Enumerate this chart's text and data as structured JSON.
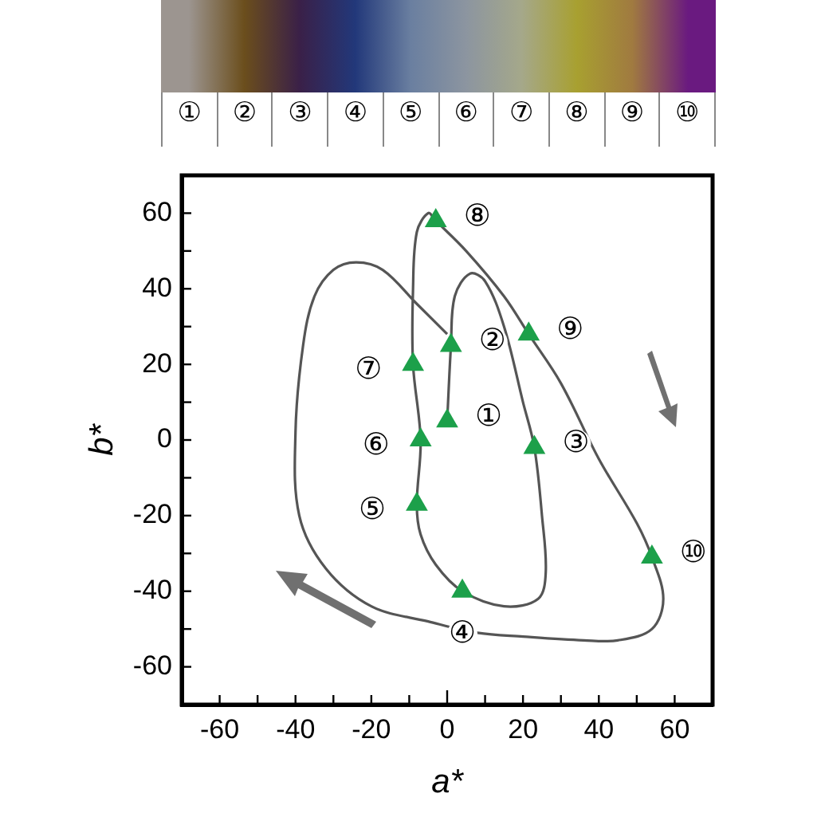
{
  "chart_data": [
    {
      "type": "scatter",
      "xlabel": "a*",
      "ylabel": "b*",
      "xlim": [
        -70,
        70
      ],
      "ylim": [
        -70,
        70
      ],
      "xticks": [
        -60,
        {
          "value": -50,
          "label": null
        },
        -40,
        {
          "value": -30,
          "label": null
        },
        -20,
        {
          "value": -10,
          "label": null
        },
        0,
        {
          "value": 10,
          "label": null
        },
        20,
        {
          "value": 30,
          "label": null
        },
        40,
        {
          "value": 50,
          "label": null
        },
        60
      ],
      "yticks": [
        -60,
        {
          "value": -50,
          "label": null
        },
        -40,
        {
          "value": -30,
          "label": null
        },
        -20,
        {
          "value": -10,
          "label": null
        },
        0,
        {
          "value": 10,
          "label": null
        },
        20,
        {
          "value": 30,
          "label": null
        },
        40,
        {
          "value": 50,
          "label": null
        },
        60
      ],
      "grid": false,
      "series": [
        {
          "type": "line",
          "color": "#555555",
          "marker": "none",
          "x": [
            0,
            1,
            2,
            6,
            10,
            15,
            20,
            23,
            25,
            26,
            24,
            15,
            4,
            -3,
            -7,
            -8,
            -7,
            -9,
            -9,
            -8,
            -5,
            -3,
            5,
            15,
            21.5,
            30,
            40,
            50,
            54,
            57,
            54,
            45,
            36,
            20,
            8,
            -5,
            -20,
            -32,
            -39,
            -40,
            -38,
            -35,
            -30,
            -24,
            -17,
            -8,
            0
          ],
          "values": [
            5,
            25,
            38,
            44,
            42,
            30,
            10,
            -2,
            -20,
            -35,
            -42,
            -44,
            -40,
            -33,
            -25,
            -17,
            0,
            20,
            40,
            55,
            60,
            58,
            50,
            38,
            28,
            15,
            -5,
            -22,
            -31,
            -42,
            -50,
            -53,
            -53,
            -52,
            -51,
            -48,
            -44,
            -34,
            -20,
            2,
            25,
            38,
            45,
            47,
            45,
            36,
            28
          ]
        },
        {
          "type": "scatter",
          "color": "#1ca04a",
          "marker": "triangle",
          "x": [
            0,
            1,
            23,
            4,
            -8,
            -7,
            -9,
            -3,
            21.5,
            54
          ],
          "values": [
            5,
            25,
            -2,
            -40,
            -17,
            0,
            20,
            58,
            28,
            -31
          ]
        }
      ],
      "annotations": [
        {
          "text": "①",
          "x": 0,
          "y": 5
        },
        {
          "text": "②",
          "x": 1,
          "y": 25
        },
        {
          "text": "③",
          "x": 23,
          "y": -2
        },
        {
          "text": "④",
          "x": 4,
          "y": -40
        },
        {
          "text": "⑤",
          "x": -8,
          "y": -17
        },
        {
          "text": "⑥",
          "x": -7,
          "y": 0
        },
        {
          "text": "⑦",
          "x": -9,
          "y": 20
        },
        {
          "text": "⑧",
          "x": -3,
          "y": 58
        },
        {
          "text": "⑨",
          "x": 21.5,
          "y": 28
        },
        {
          "text": "⑩",
          "x": 54,
          "y": -31
        }
      ]
    },
    {
      "type": "other",
      "categories": [
        "①",
        "②",
        "③",
        "④",
        "⑤",
        "⑥",
        "⑦",
        "⑧",
        "⑨",
        "⑩"
      ],
      "colors": [
        "#9c9590",
        "#6b4e1c",
        "#3a2048",
        "#22387a",
        "#6a7fa0",
        "#8c95a0",
        "#a5a88a",
        "#a8a030",
        "#a07a40",
        "#6a1a80"
      ]
    }
  ]
}
